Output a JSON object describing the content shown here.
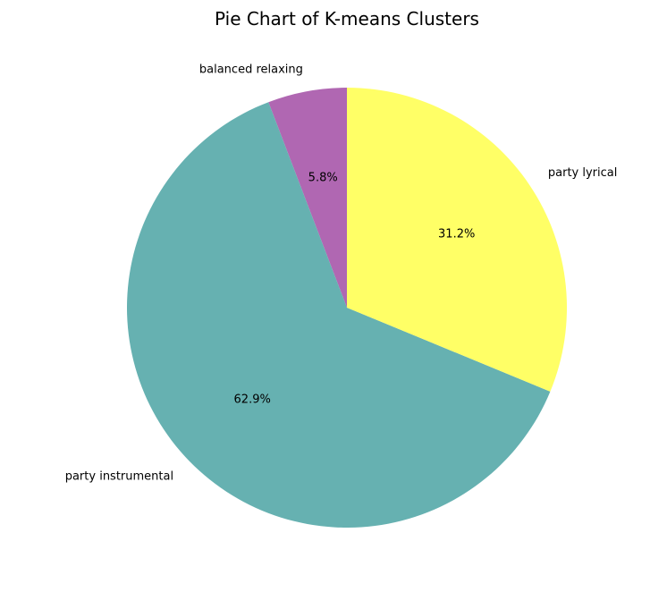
{
  "chart_data": {
    "type": "pie",
    "title": "Pie Chart of K-means Clusters",
    "start_angle_deg": 90,
    "direction": "counterclockwise",
    "slices": [
      {
        "label": "balanced relaxing",
        "value": 5.8,
        "pct_label": "5.8%",
        "color": "#b067b2"
      },
      {
        "label": "party instrumental",
        "value": 62.9,
        "pct_label": "62.9%",
        "color": "#66b1b1"
      },
      {
        "label": "party lyrical",
        "value": 31.2,
        "pct_label": "31.2%",
        "color": "#ffff66"
      }
    ]
  }
}
